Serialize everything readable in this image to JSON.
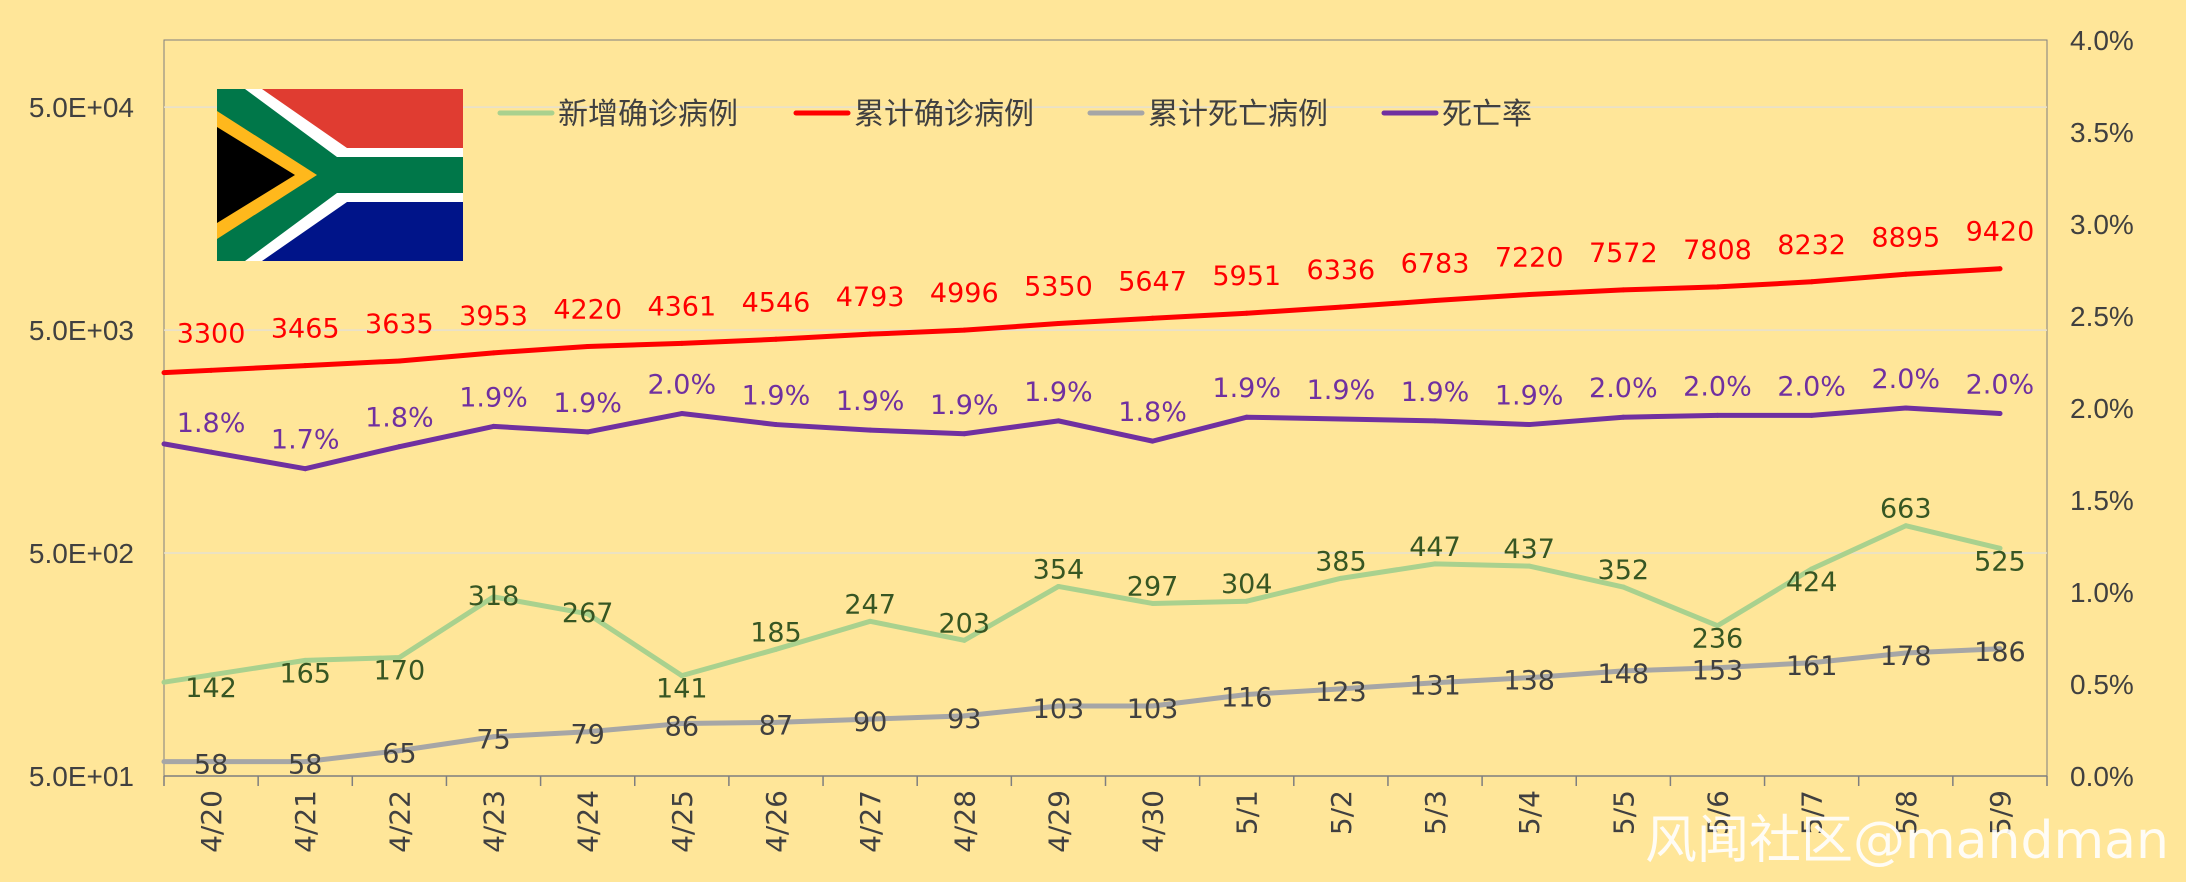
{
  "colors": {
    "background": "#FFE699",
    "new_cases": "#A9D18E",
    "cum_cases": "#FF0000",
    "cum_deaths": "#A6A6A6",
    "death_rate": "#7030A0",
    "new_cases_label": "#375623",
    "cum_deaths_label": "#404040"
  },
  "watermark": "风闻社区@mandman",
  "flag": {
    "name": "south-africa-flag"
  },
  "chart_data": {
    "type": "line",
    "categories": [
      "4/20",
      "4/21",
      "4/22",
      "4/23",
      "4/24",
      "4/25",
      "4/26",
      "4/27",
      "4/28",
      "4/29",
      "4/30",
      "5/1",
      "5/2",
      "5/3",
      "5/4",
      "5/5",
      "5/6",
      "5/7",
      "5/8",
      "5/9"
    ],
    "y_left": {
      "scale": "log",
      "range": [
        50,
        100000
      ],
      "ticks": [
        50,
        500,
        5000,
        50000
      ],
      "tick_labels": [
        "5.0E+01",
        "5.0E+02",
        "5.0E+03",
        "5.0E+04"
      ]
    },
    "y_right": {
      "range": [
        0,
        4.0
      ],
      "ticks": [
        0,
        0.5,
        1.0,
        1.5,
        2.0,
        2.5,
        3.0,
        3.5,
        4.0
      ],
      "tick_labels": [
        "0.0%",
        "0.5%",
        "1.0%",
        "1.5%",
        "2.0%",
        "2.5%",
        "3.0%",
        "3.5%",
        "4.0%"
      ]
    },
    "grid": true,
    "legend_position": "top",
    "series": [
      {
        "name": "新增确诊病例",
        "axis": "left",
        "values": [
          142,
          165,
          170,
          318,
          267,
          141,
          185,
          247,
          203,
          354,
          297,
          304,
          385,
          447,
          437,
          352,
          236,
          424,
          663,
          525
        ],
        "labels": [
          "142",
          "165",
          "170",
          "318",
          "267",
          "141",
          "185",
          "247",
          "203",
          "354",
          "297",
          "304",
          "385",
          "447",
          "437",
          "352",
          "236",
          "424",
          "663",
          "525"
        ]
      },
      {
        "name": "累计确诊病例",
        "axis": "left",
        "values": [
          3300,
          3465,
          3635,
          3953,
          4220,
          4361,
          4546,
          4793,
          4996,
          5350,
          5647,
          5951,
          6336,
          6783,
          7220,
          7572,
          7808,
          8232,
          8895,
          9420
        ],
        "labels": [
          "3300",
          "3465",
          "3635",
          "3953",
          "4220",
          "4361",
          "4546",
          "4793",
          "4996",
          "5350",
          "5647",
          "5951",
          "6336",
          "6783",
          "7220",
          "7572",
          "7808",
          "8232",
          "8895",
          "9420"
        ]
      },
      {
        "name": "累计死亡病例",
        "axis": "left",
        "values": [
          58,
          58,
          65,
          75,
          79,
          86,
          87,
          90,
          93,
          103,
          103,
          116,
          123,
          131,
          138,
          148,
          153,
          161,
          178,
          186
        ],
        "labels": [
          "58",
          "58",
          "65",
          "75",
          "79",
          "86",
          "87",
          "90",
          "93",
          "103",
          "103",
          "116",
          "123",
          "131",
          "138",
          "148",
          "153",
          "161",
          "178",
          "186"
        ]
      },
      {
        "name": "死亡率",
        "axis": "right",
        "values": [
          1.76,
          1.67,
          1.79,
          1.9,
          1.87,
          1.97,
          1.91,
          1.88,
          1.86,
          1.93,
          1.82,
          1.95,
          1.94,
          1.93,
          1.91,
          1.95,
          1.96,
          1.96,
          2.0,
          1.97
        ],
        "labels": [
          "1.8%",
          "1.7%",
          "1.8%",
          "1.9%",
          "1.9%",
          "2.0%",
          "1.9%",
          "1.9%",
          "1.9%",
          "1.9%",
          "1.8%",
          "1.9%",
          "1.9%",
          "1.9%",
          "1.9%",
          "2.0%",
          "2.0%",
          "2.0%",
          "2.0%",
          "2.0%"
        ]
      }
    ]
  }
}
